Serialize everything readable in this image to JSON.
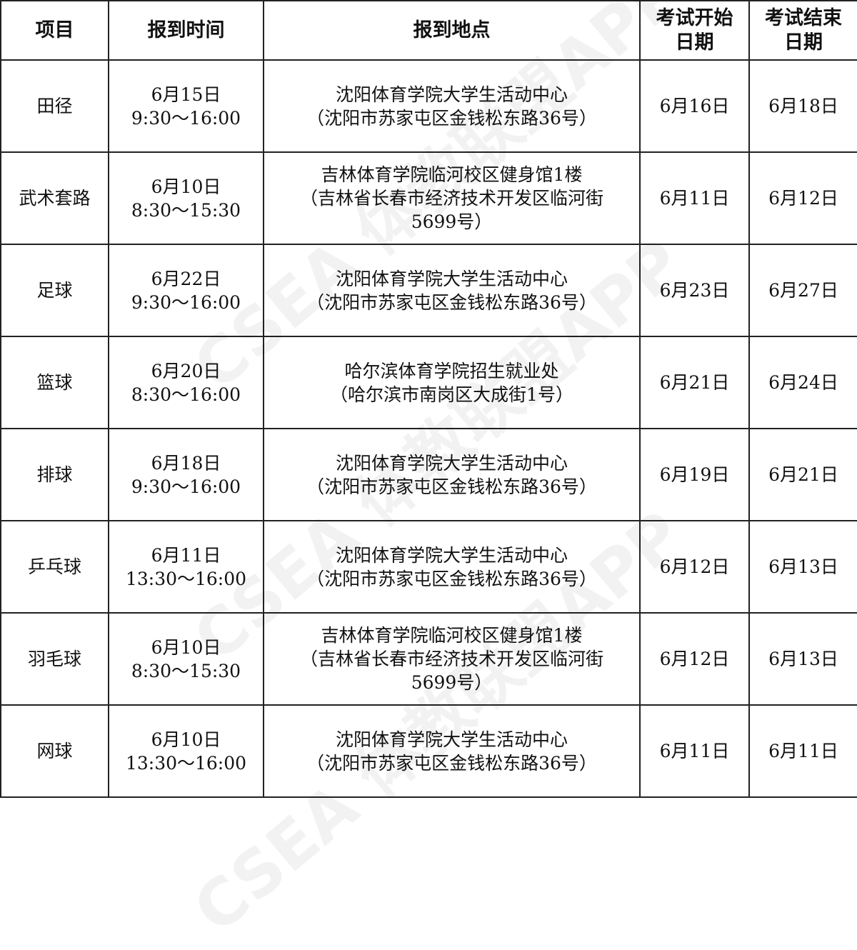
{
  "headers": [
    "项目",
    "报到时间",
    "报到地点",
    [
      "考试开始",
      "日期"
    ],
    [
      "考试结束",
      "日期"
    ]
  ],
  "rows": [
    {
      "item": "田径",
      "time": [
        "6月15日",
        "9:30～16:00"
      ],
      "place": [
        "沈阳体育学院大学生活动中心",
        "（沈阳市苏家屯区金钱松东路36号）"
      ],
      "start": "6月16日",
      "end": "6月18日"
    },
    {
      "item": "武术套路",
      "time": [
        "6月10日",
        "8:30～15:30"
      ],
      "place": [
        "吉林体育学院临河校区健身馆1楼",
        "（吉林省长春市经济技术开发区临河街",
        "5699号）"
      ],
      "start": "6月11日",
      "end": "6月12日"
    },
    {
      "item": "足球",
      "time": [
        "6月22日",
        "9:30～16:00"
      ],
      "place": [
        "沈阳体育学院大学生活动中心",
        "（沈阳市苏家屯区金钱松东路36号）"
      ],
      "start": "6月23日",
      "end": "6月27日"
    },
    {
      "item": "篮球",
      "time": [
        "6月20日",
        "8:30～16:00"
      ],
      "place": [
        "哈尔滨体育学院招生就业处",
        "（哈尔滨市南岗区大成街1号）"
      ],
      "start": "6月21日",
      "end": "6月24日"
    },
    {
      "item": "排球",
      "time": [
        "6月18日",
        "9:30～16:00"
      ],
      "place": [
        "沈阳体育学院大学生活动中心",
        "（沈阳市苏家屯区金钱松东路36号）"
      ],
      "start": "6月19日",
      "end": "6月21日"
    },
    {
      "item": "乒乓球",
      "time": [
        "6月11日",
        "13:30～16:00"
      ],
      "place": [
        "沈阳体育学院大学生活动中心",
        "（沈阳市苏家屯区金钱松东路36号）"
      ],
      "start": "6月12日",
      "end": "6月13日"
    },
    {
      "item": "羽毛球",
      "time": [
        "6月10日",
        "8:30～15:30"
      ],
      "place": [
        "吉林体育学院临河校区健身馆1楼",
        "（吉林省长春市经济技术开发区临河街",
        "5699号）"
      ],
      "start": "6月12日",
      "end": "6月13日"
    },
    {
      "item": "网球",
      "time": [
        "6月10日",
        "13:30～16:00"
      ],
      "place": [
        "沈阳体育学院大学生活动中心",
        "（沈阳市苏家屯区金钱松东路36号）"
      ],
      "start": "6月11日",
      "end": "6月11日"
    }
  ],
  "watermark": "CSEA 体教联盟APP"
}
